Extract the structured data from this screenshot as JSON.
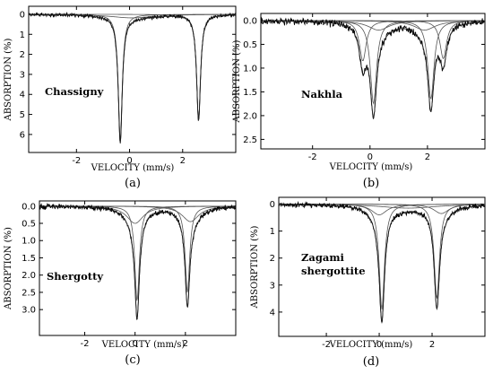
{
  "chart_data": [
    {
      "type": "line",
      "panel": "(a)",
      "sample": "Chassigny",
      "xlabel": "VELOCITY (mm/s)",
      "ylabel": "ABSORPTION (%)",
      "xlim": [
        -3.8,
        4.0
      ],
      "ylim": [
        6.9,
        -0.4
      ],
      "y_inverted": true,
      "xticks": [
        -2,
        0,
        2
      ],
      "yticks": [
        0,
        1,
        2,
        3,
        4,
        5,
        6
      ],
      "ytick_labels": [
        "0",
        "1",
        "2",
        "3",
        "4",
        "5",
        "6"
      ],
      "components": [
        {
          "type": "lorentzian",
          "center": -0.35,
          "depth": 6.3,
          "hwhm": 0.09
        },
        {
          "type": "lorentzian",
          "center": 2.6,
          "depth": 5.3,
          "hwhm": 0.09
        },
        {
          "type": "lorentzian",
          "center": 0.1,
          "depth": 0.18,
          "hwhm": 1.0
        }
      ],
      "noise": 0.06
    },
    {
      "type": "line",
      "panel": "(b)",
      "sample": "Nakhla",
      "xlabel": "VELOCITY (mm/s)",
      "ylabel": "ABSORPTION (%)",
      "xlim": [
        -3.8,
        4.0
      ],
      "ylim": [
        2.7,
        -0.15
      ],
      "y_inverted": true,
      "xticks": [
        -2,
        0,
        2
      ],
      "yticks": [
        0,
        0.5,
        1,
        1.5,
        2,
        2.5
      ],
      "ytick_labels": [
        "0.0",
        "0.5",
        "1.0",
        "1.5",
        "2.0",
        "2.5"
      ],
      "components": [
        {
          "type": "lorentzian",
          "center": 0.12,
          "depth": 1.75,
          "hwhm": 0.13
        },
        {
          "type": "lorentzian",
          "center": 2.12,
          "depth": 1.65,
          "hwhm": 0.13
        },
        {
          "type": "lorentzian",
          "center": -0.25,
          "depth": 0.85,
          "hwhm": 0.14
        },
        {
          "type": "lorentzian",
          "center": 2.55,
          "depth": 0.8,
          "hwhm": 0.14
        },
        {
          "type": "lorentzian",
          "center": 0.3,
          "depth": 0.2,
          "hwhm": 0.45
        },
        {
          "type": "lorentzian",
          "center": 1.9,
          "depth": 0.2,
          "hwhm": 0.45
        }
      ],
      "noise": 0.05
    },
    {
      "type": "line",
      "panel": "(c)",
      "sample": "Shergotty",
      "xlabel": "VELOCITY (mm/s)",
      "ylabel": "ABSORPTION (%)",
      "xlim": [
        -3.8,
        4.0
      ],
      "ylim": [
        3.75,
        -0.15
      ],
      "y_inverted": true,
      "xticks": [
        -2,
        0,
        2
      ],
      "yticks": [
        0,
        0.5,
        1,
        1.5,
        2,
        2.5,
        3
      ],
      "ytick_labels": [
        "0.0",
        "0.5",
        "1.0",
        "1.5",
        "2.0",
        "2.5",
        "3.0"
      ],
      "components": [
        {
          "type": "lorentzian",
          "center": 0.08,
          "depth": 2.75,
          "hwhm": 0.11
        },
        {
          "type": "lorentzian",
          "center": 2.08,
          "depth": 2.5,
          "hwhm": 0.11
        },
        {
          "type": "lorentzian",
          "center": 0.0,
          "depth": 0.5,
          "hwhm": 0.4
        },
        {
          "type": "lorentzian",
          "center": 2.2,
          "depth": 0.45,
          "hwhm": 0.4
        }
      ],
      "noise": 0.05
    },
    {
      "type": "line",
      "panel": "(d)",
      "sample": "Zagami\nshergottite",
      "xlabel": "VELOCITY (mm/s)",
      "ylabel": "ABSORPTION (%)",
      "xlim": [
        -3.8,
        4.0
      ],
      "ylim": [
        4.9,
        -0.25
      ],
      "y_inverted": true,
      "xticks": [
        -2,
        0,
        2
      ],
      "yticks": [
        0,
        1,
        2,
        3,
        4
      ],
      "ytick_labels": [
        "0",
        "1",
        "2",
        "3",
        "4"
      ],
      "components": [
        {
          "type": "lorentzian",
          "center": 0.1,
          "depth": 3.9,
          "hwhm": 0.12
        },
        {
          "type": "lorentzian",
          "center": 2.18,
          "depth": 3.5,
          "hwhm": 0.12
        },
        {
          "type": "lorentzian",
          "center": 0.0,
          "depth": 0.4,
          "hwhm": 0.35
        },
        {
          "type": "lorentzian",
          "center": 2.35,
          "depth": 0.35,
          "hwhm": 0.35
        },
        {
          "type": "lorentzian",
          "center": 1.1,
          "depth": 0.15,
          "hwhm": 1.3
        }
      ],
      "noise": 0.06
    }
  ]
}
